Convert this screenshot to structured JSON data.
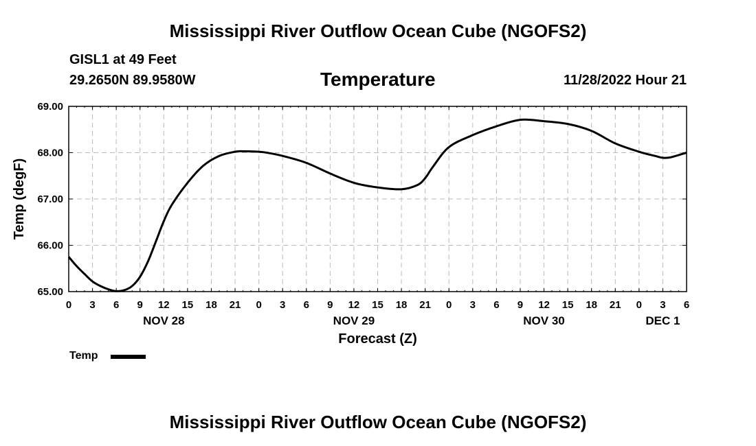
{
  "page": {
    "title_top": "Mississippi River Outflow Ocean Cube (NGOFS2)",
    "title_bottom": "Mississippi River Outflow Ocean Cube (NGOFS2)"
  },
  "station": {
    "name": "GISL1 at 49 Feet",
    "coords": "29.2650N  89.9580W",
    "datetime": "11/28/2022 Hour 21"
  },
  "legend": {
    "label": "Temp"
  },
  "colors": {
    "line": "#000000",
    "grid": "#bbbbbb",
    "background": "#ffffff"
  },
  "chart_data": {
    "type": "line",
    "title": "Temperature",
    "xlabel": "Forecast (Z)",
    "ylabel": "Temp (degF)",
    "ylim": [
      65.0,
      69.0
    ],
    "xlim": [
      0,
      78
    ],
    "yticks": [
      65.0,
      66.0,
      67.0,
      68.0,
      69.0
    ],
    "ytick_labels": [
      "65.00",
      "66.00",
      "67.00",
      "68.00",
      "69.00"
    ],
    "xticks": [
      0,
      3,
      6,
      9,
      12,
      15,
      18,
      21,
      24,
      27,
      30,
      33,
      36,
      39,
      42,
      45,
      48,
      51,
      54,
      57,
      60,
      63,
      66,
      69,
      72,
      75,
      78
    ],
    "xtick_labels": [
      "0",
      "3",
      "6",
      "9",
      "12",
      "15",
      "18",
      "21",
      "0",
      "3",
      "6",
      "9",
      "12",
      "15",
      "18",
      "21",
      "0",
      "3",
      "6",
      "9",
      "12",
      "15",
      "18",
      "21",
      "0",
      "3",
      "6"
    ],
    "day_labels": [
      {
        "hour": 12,
        "label": "NOV 28"
      },
      {
        "hour": 36,
        "label": "NOV 29"
      },
      {
        "hour": 60,
        "label": "NOV 30"
      },
      {
        "hour": 75,
        "label": "DEC 1"
      }
    ],
    "grid": true,
    "series": [
      {
        "name": "Temp",
        "x": [
          0,
          1,
          2,
          3,
          4,
          5,
          6,
          7,
          8,
          9,
          10,
          11,
          12,
          13,
          15,
          17,
          19,
          21,
          22,
          24,
          25,
          27,
          30,
          33,
          36,
          39,
          42,
          44,
          45,
          46,
          48,
          51,
          54,
          57,
          60,
          63,
          66,
          69,
          72,
          74,
          75,
          76,
          78
        ],
        "y": [
          65.75,
          65.55,
          65.38,
          65.22,
          65.12,
          65.05,
          65.01,
          65.03,
          65.12,
          65.32,
          65.65,
          66.08,
          66.52,
          66.87,
          67.35,
          67.72,
          67.93,
          68.02,
          68.03,
          68.02,
          68.0,
          67.93,
          67.78,
          67.55,
          67.35,
          67.25,
          67.21,
          67.3,
          67.45,
          67.7,
          68.12,
          68.38,
          68.57,
          68.71,
          68.68,
          68.62,
          68.47,
          68.2,
          68.02,
          67.93,
          67.89,
          67.9,
          68.0
        ]
      }
    ]
  }
}
